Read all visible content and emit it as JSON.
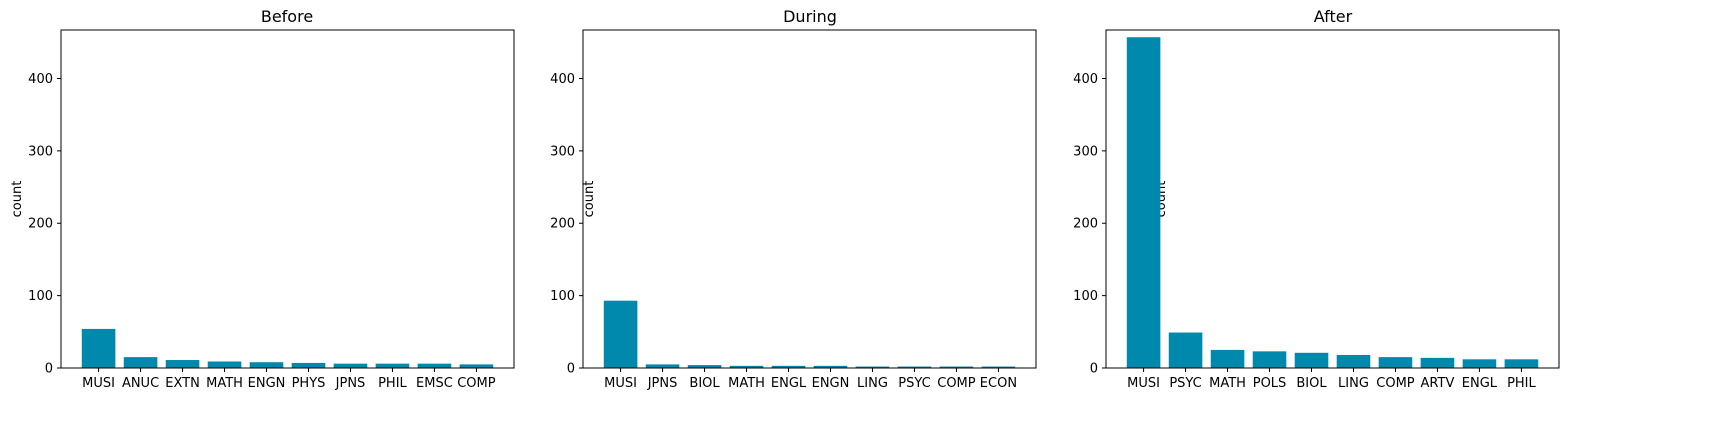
{
  "chart_data": [
    {
      "type": "bar",
      "title": "Before",
      "xlabel": "",
      "ylabel": "count",
      "ylim": [
        0,
        467
      ],
      "yticks": [
        0,
        100,
        200,
        300,
        400
      ],
      "grid": false,
      "color": "#0088ad",
      "categories": [
        "MUSI",
        "ANUC",
        "EXTN",
        "MATH",
        "ENGN",
        "PHYS",
        "JPNS",
        "PHIL",
        "EMSC",
        "COMP"
      ],
      "values": [
        54,
        15,
        11,
        9,
        8,
        7,
        6,
        6,
        6,
        5
      ]
    },
    {
      "type": "bar",
      "title": "During",
      "xlabel": "",
      "ylabel": "count",
      "ylim": [
        0,
        467
      ],
      "yticks": [
        0,
        100,
        200,
        300,
        400
      ],
      "grid": false,
      "color": "#0088ad",
      "categories": [
        "MUSI",
        "JPNS",
        "BIOL",
        "MATH",
        "ENGL",
        "ENGN",
        "LING",
        "PSYC",
        "COMP",
        "ECON"
      ],
      "values": [
        93,
        5,
        4,
        3,
        3,
        3,
        2,
        2,
        2,
        2
      ]
    },
    {
      "type": "bar",
      "title": "After",
      "xlabel": "",
      "ylabel": "count",
      "ylim": [
        0,
        467
      ],
      "yticks": [
        0,
        100,
        200,
        300,
        400
      ],
      "grid": false,
      "color": "#0088ad",
      "categories": [
        "MUSI",
        "PSYC",
        "MATH",
        "POLS",
        "BIOL",
        "LING",
        "COMP",
        "ARTV",
        "ENGL",
        "PHIL"
      ],
      "values": [
        457,
        49,
        25,
        23,
        21,
        18,
        15,
        14,
        12,
        12
      ]
    }
  ]
}
